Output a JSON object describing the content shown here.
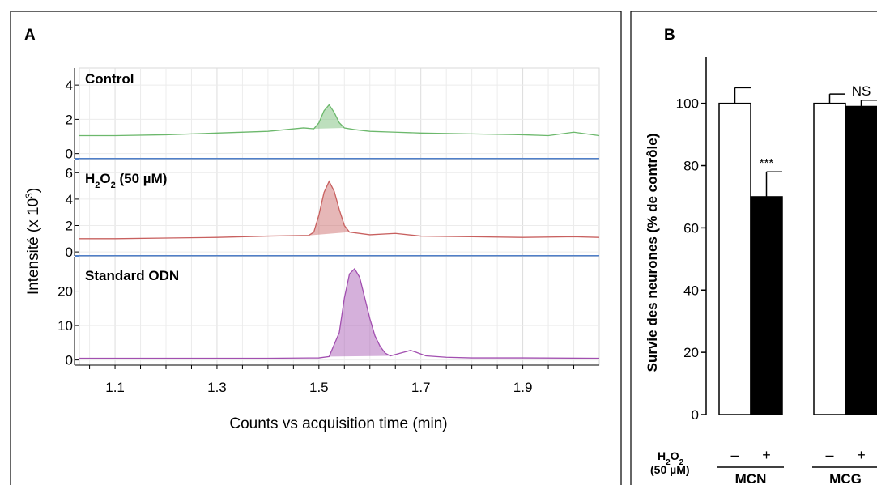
{
  "panel_a": {
    "label": "A",
    "ylabel": "Intensité (x 10",
    "ylabel_exp": "3",
    "ylabel_close": ")",
    "xlabel": "Counts vs acquisition time (min)",
    "colors": {
      "green": "#6cb86c",
      "red": "#c8605f",
      "purple": "#a24fb0",
      "divider": "#4f7fc9"
    }
  },
  "panel_b": {
    "label": "B",
    "ylabel": "Survie des neurones (% de contrôle)",
    "treatment_label": "H",
    "treatment_sub": "2",
    "treatment_o": "O",
    "treatment_conc": "(50 µM)",
    "minus": "–",
    "plus": "+"
  },
  "chart_data": [
    {
      "type": "line",
      "x_ticks": [
        1.1,
        1.3,
        1.5,
        1.7,
        1.9
      ],
      "xlim": [
        1.03,
        2.05
      ],
      "series": [
        {
          "name": "Control",
          "ylim": [
            -0.3,
            5
          ],
          "y_ticks": [
            0,
            2,
            4
          ],
          "fill_range": [
            1.48,
            1.555
          ],
          "points": [
            [
              1.03,
              1.05
            ],
            [
              1.1,
              1.05
            ],
            [
              1.2,
              1.1
            ],
            [
              1.3,
              1.2
            ],
            [
              1.4,
              1.3
            ],
            [
              1.47,
              1.5
            ],
            [
              1.49,
              1.45
            ],
            [
              1.5,
              1.8
            ],
            [
              1.51,
              2.5
            ],
            [
              1.52,
              2.85
            ],
            [
              1.53,
              2.4
            ],
            [
              1.54,
              1.8
            ],
            [
              1.55,
              1.5
            ],
            [
              1.57,
              1.4
            ],
            [
              1.6,
              1.3
            ],
            [
              1.65,
              1.25
            ],
            [
              1.7,
              1.2
            ],
            [
              1.8,
              1.15
            ],
            [
              1.9,
              1.1
            ],
            [
              1.95,
              1.05
            ],
            [
              2.0,
              1.25
            ],
            [
              2.05,
              1.05
            ]
          ]
        },
        {
          "name": "H₂O₂ (50 µM)",
          "ylim": [
            -0.3,
            7
          ],
          "y_ticks": [
            0,
            2,
            4,
            6
          ],
          "fill_range": [
            1.48,
            1.56
          ],
          "points": [
            [
              1.03,
              1.0
            ],
            [
              1.1,
              1.0
            ],
            [
              1.2,
              1.05
            ],
            [
              1.3,
              1.1
            ],
            [
              1.4,
              1.2
            ],
            [
              1.48,
              1.25
            ],
            [
              1.49,
              1.5
            ],
            [
              1.5,
              2.8
            ],
            [
              1.51,
              4.5
            ],
            [
              1.52,
              5.35
            ],
            [
              1.53,
              4.6
            ],
            [
              1.54,
              3.2
            ],
            [
              1.55,
              2.0
            ],
            [
              1.56,
              1.5
            ],
            [
              1.6,
              1.3
            ],
            [
              1.65,
              1.4
            ],
            [
              1.7,
              1.2
            ],
            [
              1.8,
              1.15
            ],
            [
              1.9,
              1.1
            ],
            [
              2.0,
              1.15
            ],
            [
              2.05,
              1.1
            ]
          ]
        },
        {
          "name": "Standard ODN",
          "ylim": [
            -1.5,
            30
          ],
          "y_ticks": [
            0,
            10,
            20
          ],
          "fill_range": [
            1.51,
            1.65
          ],
          "points": [
            [
              1.03,
              0.5
            ],
            [
              1.2,
              0.5
            ],
            [
              1.4,
              0.5
            ],
            [
              1.5,
              0.6
            ],
            [
              1.52,
              1.0
            ],
            [
              1.54,
              8
            ],
            [
              1.55,
              18
            ],
            [
              1.56,
              25
            ],
            [
              1.57,
              26.5
            ],
            [
              1.58,
              24
            ],
            [
              1.59,
              18
            ],
            [
              1.6,
              12
            ],
            [
              1.61,
              7
            ],
            [
              1.62,
              4
            ],
            [
              1.63,
              2
            ],
            [
              1.64,
              1.2
            ],
            [
              1.66,
              2.0
            ],
            [
              1.68,
              2.8
            ],
            [
              1.69,
              2.3
            ],
            [
              1.71,
              1.2
            ],
            [
              1.75,
              0.8
            ],
            [
              1.8,
              0.6
            ],
            [
              1.9,
              0.6
            ],
            [
              2.05,
              0.5
            ]
          ]
        }
      ]
    },
    {
      "type": "bar",
      "ylabel": "Survie des neurones (% de contrôle)",
      "ylim": [
        0,
        115
      ],
      "y_ticks": [
        0,
        20,
        40,
        60,
        80,
        100
      ],
      "groups": [
        {
          "label": "MCN",
          "bars": [
            {
              "treatment": "–",
              "value": 100,
              "error": 5,
              "color": "#ffffff"
            },
            {
              "treatment": "+",
              "value": 70,
              "error": 8,
              "color": "#000000"
            }
          ],
          "annotation": "***"
        },
        {
          "label": "MCG",
          "bars": [
            {
              "treatment": "–",
              "value": 100,
              "error": 3,
              "color": "#ffffff"
            },
            {
              "treatment": "+",
              "value": 99,
              "error": 2,
              "color": "#000000"
            }
          ],
          "annotation": "NS"
        }
      ]
    }
  ]
}
